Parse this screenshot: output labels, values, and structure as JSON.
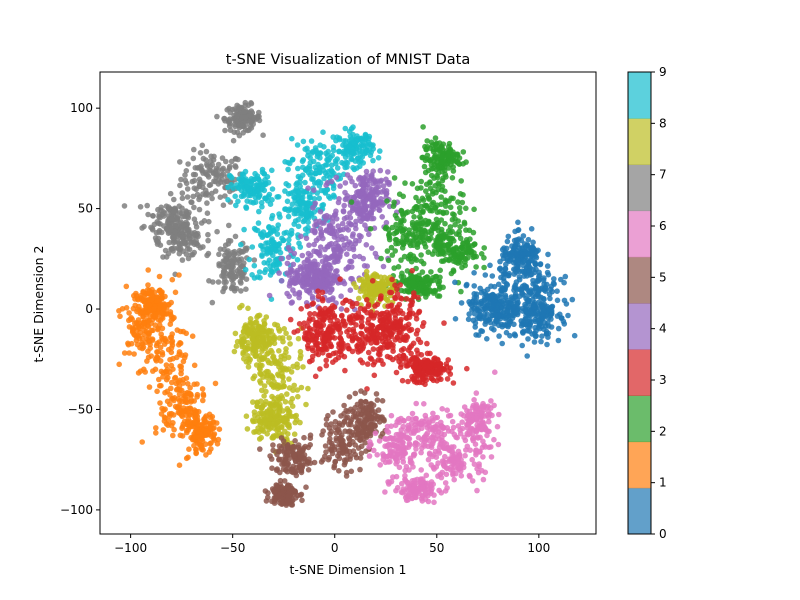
{
  "chart_data": {
    "type": "scatter",
    "title": "t-SNE Visualization of MNIST Data",
    "xlabel": "t-SNE Dimension 1",
    "ylabel": "t-SNE Dimension 2",
    "xlim": [
      -115,
      128
    ],
    "ylim": [
      -112,
      118
    ],
    "xticks": [
      -100,
      -50,
      0,
      50,
      100
    ],
    "yticks": [
      -100,
      -50,
      0,
      50,
      100
    ],
    "grid": false,
    "colorbar": {
      "ticks": [
        "0",
        "1",
        "2",
        "3",
        "4",
        "5",
        "6",
        "7",
        "8",
        "9"
      ],
      "colors": [
        "#1f77b4",
        "#ff7f0e",
        "#2ca02c",
        "#d62728",
        "#9467bd",
        "#8c564b",
        "#e377c2",
        "#7f7f7f",
        "#bcbd22",
        "#17becf"
      ]
    },
    "clusters": [
      {
        "label": 0,
        "color": "#1f77b4",
        "blobs": [
          [
            88,
            5,
            18,
            17
          ],
          [
            78,
            0,
            12,
            10
          ],
          [
            92,
            25,
            10,
            10
          ],
          [
            100,
            0,
            10,
            14
          ]
        ],
        "count": 650
      },
      {
        "label": 1,
        "color": "#ff7f0e",
        "blobs": [
          [
            -95,
            -8,
            8,
            18
          ],
          [
            -82,
            -22,
            10,
            30
          ],
          [
            -74,
            -50,
            9,
            18
          ],
          [
            -65,
            -62,
            6,
            8
          ],
          [
            -88,
            2,
            6,
            6
          ]
        ],
        "count": 600
      },
      {
        "label": 2,
        "color": "#2ca02c",
        "blobs": [
          [
            38,
            37,
            16,
            14
          ],
          [
            48,
            50,
            14,
            18
          ],
          [
            52,
            75,
            8,
            8
          ],
          [
            40,
            12,
            12,
            6
          ],
          [
            60,
            30,
            10,
            10
          ]
        ],
        "count": 650
      },
      {
        "label": 3,
        "color": "#d62728",
        "blobs": [
          [
            15,
            -10,
            20,
            16
          ],
          [
            -5,
            -12,
            10,
            14
          ],
          [
            30,
            -10,
            12,
            16
          ],
          [
            45,
            -30,
            10,
            6
          ]
        ],
        "count": 700
      },
      {
        "label": 4,
        "color": "#9467bd",
        "blobs": [
          [
            0,
            30,
            16,
            22
          ],
          [
            15,
            55,
            10,
            12
          ],
          [
            -10,
            15,
            12,
            10
          ]
        ],
        "count": 600
      },
      {
        "label": 5,
        "color": "#8c564b",
        "blobs": [
          [
            5,
            -65,
            10,
            15
          ],
          [
            -20,
            -75,
            10,
            8
          ],
          [
            15,
            -55,
            8,
            10
          ],
          [
            -25,
            -92,
            6,
            5
          ]
        ],
        "count": 500
      },
      {
        "label": 6,
        "color": "#e377c2",
        "blobs": [
          [
            45,
            -62,
            14,
            12
          ],
          [
            60,
            -75,
            12,
            10
          ],
          [
            30,
            -70,
            10,
            12
          ],
          [
            70,
            -55,
            8,
            10
          ],
          [
            40,
            -90,
            10,
            5
          ]
        ],
        "count": 600
      },
      {
        "label": 7,
        "color": "#7f7f7f",
        "blobs": [
          [
            -60,
            65,
            14,
            12
          ],
          [
            -80,
            45,
            12,
            10
          ],
          [
            -45,
            95,
            8,
            6
          ],
          [
            -50,
            20,
            8,
            12
          ],
          [
            -75,
            35,
            10,
            8
          ]
        ],
        "count": 600
      },
      {
        "label": 8,
        "color": "#bcbd22",
        "blobs": [
          [
            -28,
            -30,
            12,
            20
          ],
          [
            -30,
            -55,
            10,
            10
          ],
          [
            -40,
            -15,
            8,
            10
          ],
          [
            20,
            10,
            8,
            6
          ]
        ],
        "count": 600
      },
      {
        "label": 9,
        "color": "#17becf",
        "blobs": [
          [
            -30,
            30,
            10,
            16
          ],
          [
            -10,
            70,
            12,
            14
          ],
          [
            -40,
            60,
            10,
            8
          ],
          [
            -15,
            50,
            10,
            10
          ],
          [
            10,
            80,
            8,
            8
          ]
        ],
        "count": 600
      }
    ]
  }
}
